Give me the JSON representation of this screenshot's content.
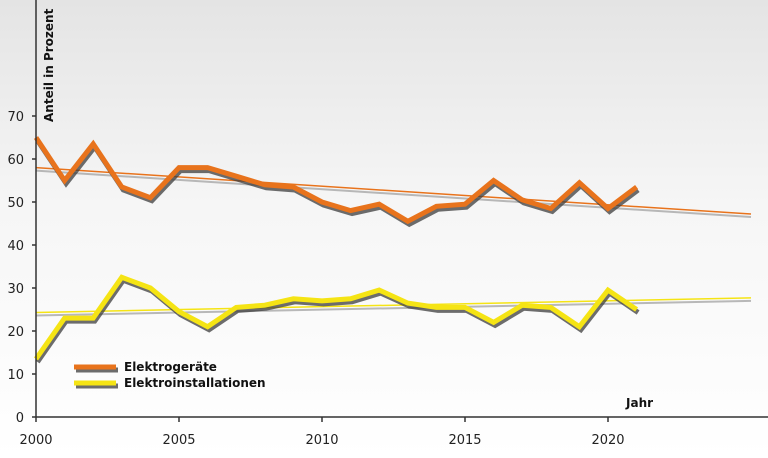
{
  "chart_data": {
    "type": "line",
    "ylabel": "Anteil in Prozent",
    "xlabel": "Jahr",
    "xlim": [
      2000,
      2025
    ],
    "ylim": [
      0,
      80
    ],
    "x_ticks": [
      2000,
      2005,
      2010,
      2015,
      2020
    ],
    "y_ticks": [
      0,
      10,
      20,
      30,
      40,
      50,
      60,
      70
    ],
    "grid": false,
    "legend_position": "bottom-left",
    "x": [
      2000,
      2001,
      2002,
      2003,
      2004,
      2005,
      2006,
      2007,
      2008,
      2009,
      2010,
      2011,
      2012,
      2013,
      2014,
      2015,
      2016,
      2017,
      2018,
      2019,
      2020,
      2021
    ],
    "series": [
      {
        "name": "Elektrogeräte",
        "color": "#e8731c",
        "values": [
          65,
          55,
          63.5,
          53.5,
          51,
          58,
          58,
          56,
          54,
          53.5,
          50,
          48,
          49.5,
          45.5,
          49,
          49.5,
          55,
          50.5,
          48.5,
          54.5,
          48.5,
          53.5
        ],
        "trend": {
          "x": [
            2000,
            2025
          ],
          "y": [
            58,
            47.2
          ]
        }
      },
      {
        "name": "Elektroinstallationen",
        "color": "#f5e414",
        "values": [
          13.5,
          23,
          23,
          32.5,
          30,
          24.5,
          21,
          25.5,
          26,
          27.5,
          27,
          27.5,
          29.5,
          26.5,
          25.5,
          25.5,
          22,
          26,
          25.5,
          21,
          29.5,
          25
        ],
        "trend": {
          "x": [
            2000,
            2025
          ],
          "y": [
            24.3,
            27.7
          ]
        }
      }
    ]
  }
}
